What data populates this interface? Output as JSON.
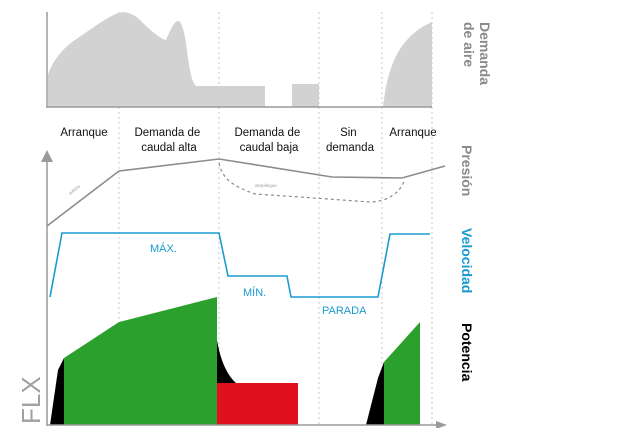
{
  "phases": [
    {
      "lines": [
        "Arranque"
      ]
    },
    {
      "lines": [
        "Demanda de",
        "caudal alta"
      ]
    },
    {
      "lines": [
        "Demanda de",
        "caudal baja"
      ]
    },
    {
      "lines": [
        "Sin",
        "demanda"
      ]
    },
    {
      "lines": [
        "Arranque"
      ]
    }
  ],
  "rows": {
    "demanda": {
      "label_lines": [
        "Demanda",
        "de aire"
      ],
      "color": "#8a8a8a"
    },
    "presion": {
      "label": "Presión",
      "color": "#8a8a8a",
      "small_labels": [
        "subida",
        "despliegue"
      ]
    },
    "velocidad": {
      "label": "Velocidad",
      "color": "#1a9bd0",
      "max": "MÁX.",
      "min": "MÍN.",
      "parada": "PARADA"
    },
    "potencia": {
      "label": "Potencia",
      "color": "#000000"
    }
  },
  "logo": "FLX",
  "colors": {
    "demand_fill": "#d2d2d2",
    "pressure_line": "#8c8c8c",
    "speed_line": "#1a9bd0",
    "power_green": "#2ca02c",
    "power_red": "#e0101e",
    "power_black": "#000000",
    "axis": "#9a9a9a",
    "grid": "#c8c8c8"
  }
}
